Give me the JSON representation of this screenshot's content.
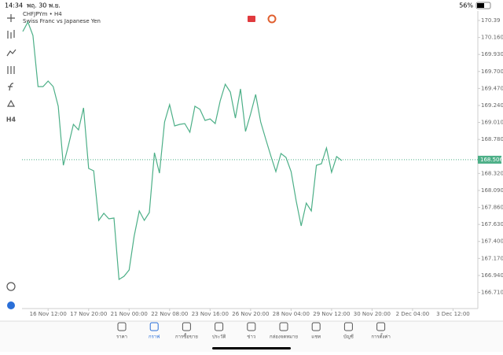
{
  "status_bar": {
    "time": "14:34",
    "date": "พฤ. 30 พ.ย.",
    "battery": "56%"
  },
  "symbol": {
    "name": "CHFJPYm • H4",
    "description": "Swiss Franc vs Japanese Yen"
  },
  "side_toolbar": {
    "timeframe": "H4"
  },
  "chart_data": {
    "type": "line",
    "x": [
      0,
      1,
      2,
      3,
      4,
      5,
      6,
      7,
      8,
      9,
      10,
      11,
      12,
      13,
      14,
      15,
      16,
      17,
      18,
      19,
      20,
      21,
      22,
      23,
      24,
      25,
      26,
      27,
      28,
      29,
      30,
      31,
      32,
      33,
      34,
      35,
      36,
      37,
      38,
      39,
      40,
      41,
      42,
      43,
      44,
      45,
      46,
      47,
      48,
      49,
      50,
      51,
      52,
      53,
      54,
      55,
      56,
      57,
      58,
      59,
      60,
      61,
      62,
      63
    ],
    "series": [
      {
        "name": "CHFJPYm",
        "color": "#4caf87",
        "values": [
          170.241,
          170.369,
          170.188,
          169.495,
          169.495,
          169.57,
          169.495,
          169.229,
          168.43,
          168.697,
          168.984,
          168.91,
          169.208,
          168.388,
          168.356,
          167.685,
          167.781,
          167.706,
          167.717,
          166.886,
          166.929,
          167.014,
          167.472,
          167.813,
          167.685,
          167.791,
          168.601,
          168.324,
          169.016,
          169.25,
          168.963,
          168.984,
          168.995,
          168.878,
          169.229,
          169.187,
          169.037,
          169.059,
          168.995,
          169.304,
          169.527,
          169.421,
          169.069,
          169.463,
          168.888,
          169.123,
          169.389,
          169.016,
          168.782,
          168.558,
          168.345,
          168.59,
          168.537,
          168.345,
          167.951,
          167.61,
          167.919,
          167.813,
          168.43,
          168.452,
          168.665,
          168.335,
          168.548,
          168.494
        ]
      }
    ],
    "current_price": 168.506,
    "xlim": [
      -0.16,
      89.9
    ],
    "xticks": [
      {
        "value": 5,
        "label": "16 Nov 12:00"
      },
      {
        "value": 13,
        "label": "17 Nov 20:00"
      },
      {
        "value": 21,
        "label": "21 Nov 00:00"
      },
      {
        "value": 29,
        "label": "22 Nov 08:00"
      },
      {
        "value": 37,
        "label": "23 Nov 16:00"
      },
      {
        "value": 45,
        "label": "26 Nov 20:00"
      },
      {
        "value": 53,
        "label": "28 Nov 04:00"
      },
      {
        "value": 61,
        "label": "29 Nov 12:00"
      },
      {
        "value": 69,
        "label": "30 Nov 20:00"
      },
      {
        "value": 77,
        "label": "2 Dec 04:00"
      },
      {
        "value": 85,
        "label": "3 Dec 12:00"
      }
    ],
    "ylim": [
      166.492,
      170.507
    ],
    "yticks": [
      170.39,
      {
        "value": 170.16,
        "label": "170.160"
      },
      {
        "value": 169.93,
        "label": "169.930"
      },
      {
        "value": 169.7,
        "label": "169.700"
      },
      {
        "value": 169.47,
        "label": "169.470"
      },
      {
        "value": 169.24,
        "label": "169.240"
      },
      {
        "value": 169.01,
        "label": "169.010"
      },
      {
        "value": 168.78,
        "label": "168.780"
      },
      {
        "value": 168.32,
        "label": "168.320"
      },
      {
        "value": 168.09,
        "label": "168.090"
      },
      {
        "value": 167.86,
        "label": "167.860"
      },
      {
        "value": 167.63,
        "label": "167.630"
      },
      {
        "value": 167.4,
        "label": "167.400"
      },
      {
        "value": 167.17,
        "label": "167.170"
      },
      {
        "value": 166.94,
        "label": "166.940"
      },
      {
        "value": 166.71,
        "label": "166.710"
      }
    ]
  },
  "tab_bar": {
    "items": [
      "ราคา",
      "กราฟ",
      "การซื้อขาย",
      "ประวัติ",
      "ข่าว",
      "กล่องจดหมาย",
      "แชท",
      "บัญชี",
      "การตั้งค่า"
    ],
    "active": 1
  }
}
